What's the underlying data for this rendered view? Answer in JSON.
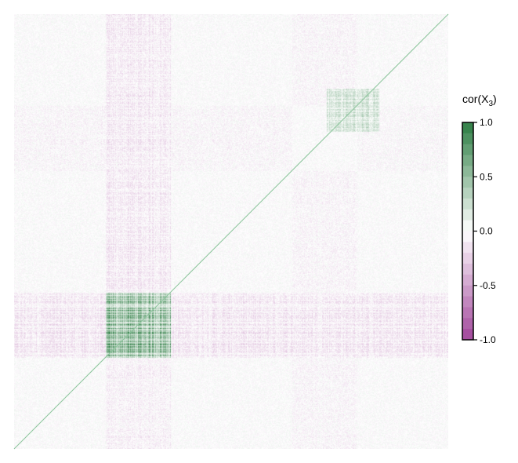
{
  "chart_data": {
    "type": "heatmap",
    "title": "",
    "xlabel": "",
    "ylabel": "",
    "matrix": "correlation matrix of X3 with unit diagonal",
    "legend": {
      "title_main": "cor(X",
      "title_sub": "3",
      "title_end": ")",
      "range": [
        -1.0,
        1.0
      ],
      "ticks": [
        1.0,
        0.5,
        0.0,
        -0.5,
        -1.0
      ],
      "tick_labels": [
        "1.0",
        "0.5",
        "0.0",
        "-0.5",
        "-1.0"
      ],
      "colors": {
        "high": "#2e7d44",
        "mid": "#ffffff",
        "low": "#a1479b",
        "diagonal": "#8ac49a"
      },
      "placement": "right"
    },
    "block_structure": [
      {
        "rows": [
          0.64,
          0.79
        ],
        "cols": [
          0.21,
          0.36
        ],
        "mean_cor": 0.75
      },
      {
        "rows": [
          0.64,
          0.79
        ],
        "cols": [
          0.36,
          1.0
        ],
        "mean_cor": -0.18
      },
      {
        "rows": [
          0.64,
          0.79
        ],
        "cols": [
          0.0,
          0.21
        ],
        "mean_cor": -0.18
      },
      {
        "rows": [
          0.0,
          0.64
        ],
        "cols": [
          0.21,
          0.36
        ],
        "mean_cor": -0.15
      },
      {
        "rows": [
          0.79,
          1.0
        ],
        "cols": [
          0.21,
          0.36
        ],
        "mean_cor": -0.1
      },
      {
        "rows": [
          0.17,
          0.27
        ],
        "cols": [
          0.72,
          0.84
        ],
        "mean_cor": 0.3
      }
    ]
  }
}
